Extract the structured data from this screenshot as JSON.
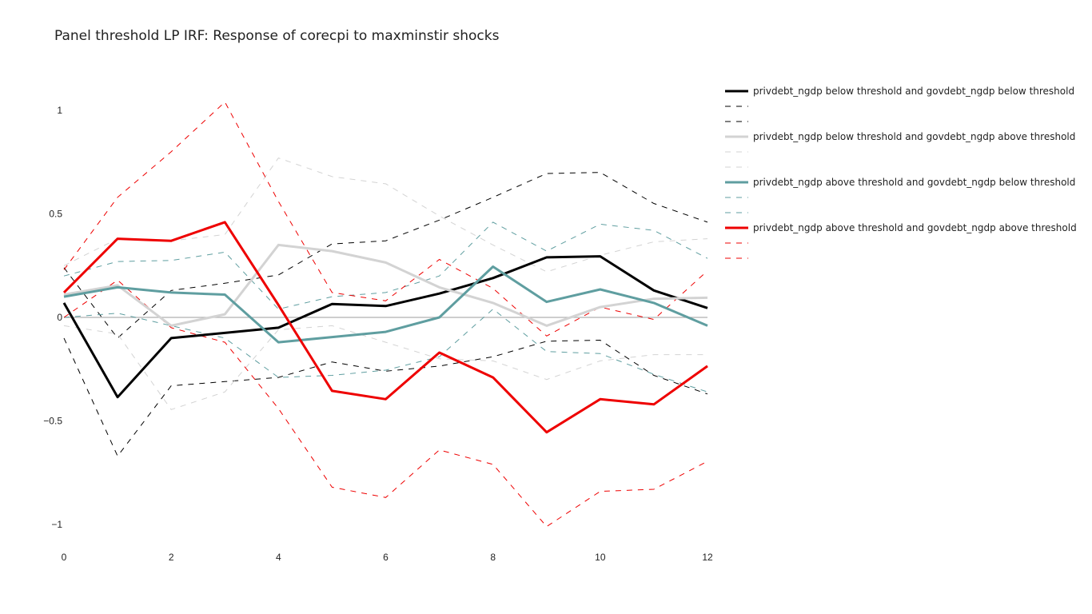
{
  "chart_data": {
    "type": "line",
    "title": "Panel threshold LP IRF: Response of corecpi to maxminstir shocks",
    "xlabel": "",
    "ylabel": "",
    "xlim": [
      0,
      12
    ],
    "ylim": [
      -1.1,
      1.15
    ],
    "x_ticks": [
      0,
      2,
      4,
      6,
      8,
      10,
      12
    ],
    "y_ticks": [
      1,
      0.5,
      0,
      -0.5,
      -1
    ],
    "y_tick_labels": [
      "1",
      "0.5",
      "0",
      "−0.5",
      "−1"
    ],
    "grid": false,
    "zero_line": true,
    "legend_position": "right",
    "x": [
      0,
      1,
      2,
      3,
      4,
      5,
      6,
      7,
      8,
      9,
      10,
      11,
      12
    ],
    "series": [
      {
        "name": "privdebt_ngdp below threshold and govdebt_ngdp below threshold",
        "color": "#000000",
        "values": [
          0.07,
          -0.385,
          -0.1,
          -0.075,
          -0.05,
          0.065,
          0.055,
          0.115,
          0.19,
          0.29,
          0.295,
          0.13,
          0.045
        ],
        "upper": [
          0.24,
          -0.1,
          0.13,
          0.165,
          0.205,
          0.355,
          0.37,
          0.47,
          0.58,
          0.695,
          0.7,
          0.55,
          0.46
        ],
        "lower": [
          -0.1,
          -0.67,
          -0.33,
          -0.31,
          -0.29,
          -0.215,
          -0.26,
          -0.235,
          -0.19,
          -0.115,
          -0.11,
          -0.28,
          -0.37
        ]
      },
      {
        "name": "privdebt_ngdp below threshold and govdebt_ngdp above threshold",
        "color": "#d3d3d3",
        "values": [
          0.11,
          0.155,
          -0.04,
          0.015,
          0.35,
          0.32,
          0.265,
          0.145,
          0.07,
          -0.04,
          0.05,
          0.09,
          0.095
        ],
        "upper": [
          0.25,
          0.38,
          0.37,
          0.4,
          0.77,
          0.68,
          0.645,
          0.49,
          0.35,
          0.22,
          0.3,
          0.365,
          0.38
        ],
        "lower": [
          -0.04,
          -0.08,
          -0.445,
          -0.36,
          -0.06,
          -0.04,
          -0.12,
          -0.2,
          -0.21,
          -0.3,
          -0.21,
          -0.18,
          -0.18
        ]
      },
      {
        "name": "privdebt_ngdp above threshold and govdebt_ngdp below threshold",
        "color": "#5f9ea0",
        "values": [
          0.1,
          0.145,
          0.12,
          0.11,
          -0.12,
          -0.095,
          -0.07,
          0.0,
          0.245,
          0.075,
          0.135,
          0.07,
          -0.04
        ],
        "upper": [
          0.2,
          0.27,
          0.275,
          0.315,
          0.04,
          0.1,
          0.12,
          0.2,
          0.46,
          0.32,
          0.45,
          0.42,
          0.285
        ],
        "lower": [
          0.0,
          0.02,
          -0.04,
          -0.1,
          -0.29,
          -0.28,
          -0.255,
          -0.19,
          0.04,
          -0.165,
          -0.175,
          -0.275,
          -0.36
        ]
      },
      {
        "name": "privdebt_ngdp above threshold and govdebt_ngdp above threshold",
        "color": "#ee0000",
        "values": [
          0.12,
          0.38,
          0.37,
          0.46,
          0.06,
          -0.355,
          -0.395,
          -0.17,
          -0.29,
          -0.555,
          -0.395,
          -0.42,
          -0.235
        ],
        "upper": [
          0.23,
          0.58,
          0.8,
          1.04,
          0.56,
          0.12,
          0.08,
          0.28,
          0.14,
          -0.09,
          0.05,
          -0.01,
          0.225
        ],
        "lower": [
          0.0,
          0.18,
          -0.05,
          -0.12,
          -0.44,
          -0.82,
          -0.87,
          -0.64,
          -0.71,
          -1.01,
          -0.84,
          -0.83,
          -0.695
        ]
      }
    ]
  }
}
